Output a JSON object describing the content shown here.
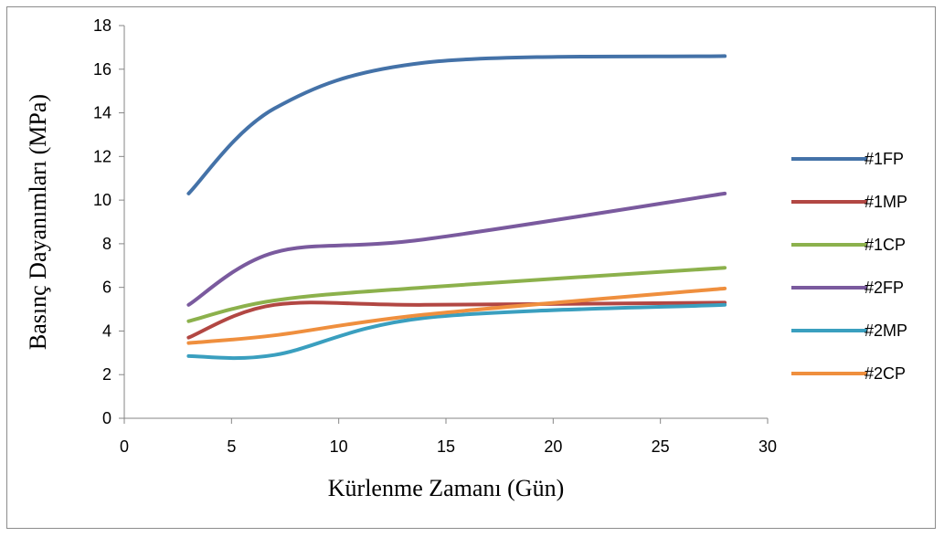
{
  "chart_data": {
    "type": "line",
    "title": "",
    "xlabel": "Kürlenme Zamanı (Gün)",
    "ylabel": "Basınç Dayanımları (MPa)",
    "xlim": [
      0,
      30
    ],
    "ylim": [
      0,
      18
    ],
    "xticks": [
      "0",
      "5",
      "10",
      "15",
      "20",
      "25",
      "30"
    ],
    "yticks": [
      "0",
      "2",
      "4",
      "6",
      "8",
      "10",
      "12",
      "14",
      "16",
      "18"
    ],
    "grid": false,
    "smooth": true,
    "legend_position": "right",
    "x": [
      3,
      7,
      14,
      28
    ],
    "series": [
      {
        "name": "#1FP",
        "color": "#4472a8",
        "values": [
          10.3,
          14.2,
          16.3,
          16.6
        ]
      },
      {
        "name": "#1MP",
        "color": "#b24743",
        "values": [
          3.7,
          5.2,
          5.2,
          5.3
        ]
      },
      {
        "name": "#1CP",
        "color": "#8cb14c",
        "values": [
          4.45,
          5.4,
          6.0,
          6.9
        ]
      },
      {
        "name": "#2FP",
        "color": "#7a5a9e",
        "values": [
          5.2,
          7.6,
          8.2,
          10.3
        ]
      },
      {
        "name": "#2MP",
        "color": "#3a9fbf",
        "values": [
          2.85,
          2.9,
          4.6,
          5.2
        ]
      },
      {
        "name": "#2CP",
        "color": "#ef8f3e",
        "values": [
          3.45,
          3.8,
          4.75,
          5.95
        ]
      }
    ]
  }
}
